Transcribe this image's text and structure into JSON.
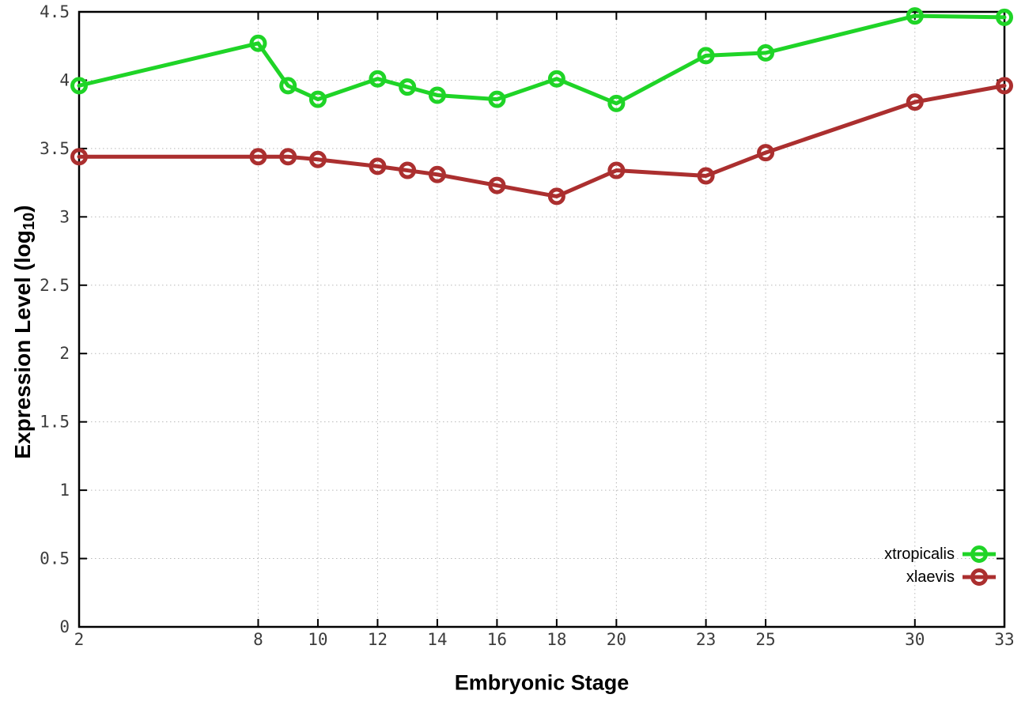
{
  "chart_data": {
    "type": "line",
    "title": "",
    "xlabel": "Embryonic Stage",
    "ylabel": "Expression Level (log10)",
    "ylabel_parts": {
      "prefix": "Expression Level (log",
      "sub": "10",
      "suffix": ")"
    },
    "x": [
      2,
      8,
      9,
      10,
      12,
      13,
      14,
      16,
      18,
      20,
      23,
      25,
      30,
      33
    ],
    "xlim": [
      2,
      33
    ],
    "ylim": [
      0,
      4.5
    ],
    "xticks": [
      2,
      8,
      10,
      12,
      14,
      16,
      18,
      20,
      23,
      25,
      30,
      33
    ],
    "xtick_labels": [
      "2",
      "8",
      "10",
      "12",
      "14",
      "16",
      "18",
      "20",
      "23",
      "25",
      "30",
      "33"
    ],
    "yticks": [
      0,
      0.5,
      1,
      1.5,
      2,
      2.5,
      3,
      3.5,
      4,
      4.5
    ],
    "ytick_labels": [
      "0",
      "0.5",
      "1",
      "1.5",
      "2",
      "2.5",
      "3",
      "3.5",
      "4",
      "4.5"
    ],
    "grid": true,
    "legend_position": "bottom-right-inside",
    "series": [
      {
        "name": "xtropicalis",
        "color": "#1fd427",
        "marker": "open-circle",
        "values": [
          3.96,
          4.27,
          3.96,
          3.86,
          4.01,
          3.95,
          3.89,
          3.86,
          4.01,
          3.83,
          4.18,
          4.2,
          4.47,
          4.46
        ]
      },
      {
        "name": "xlaevis",
        "color": "#ab2f2f",
        "marker": "open-circle",
        "values": [
          3.44,
          3.44,
          3.44,
          3.42,
          3.37,
          3.34,
          3.31,
          3.23,
          3.15,
          3.34,
          3.3,
          3.47,
          3.84,
          3.96
        ]
      }
    ]
  },
  "colors": {
    "background": "#ffffff",
    "grid": "#b9b9b9",
    "axis": "#000000",
    "tick_text": "#3c3c3c"
  }
}
